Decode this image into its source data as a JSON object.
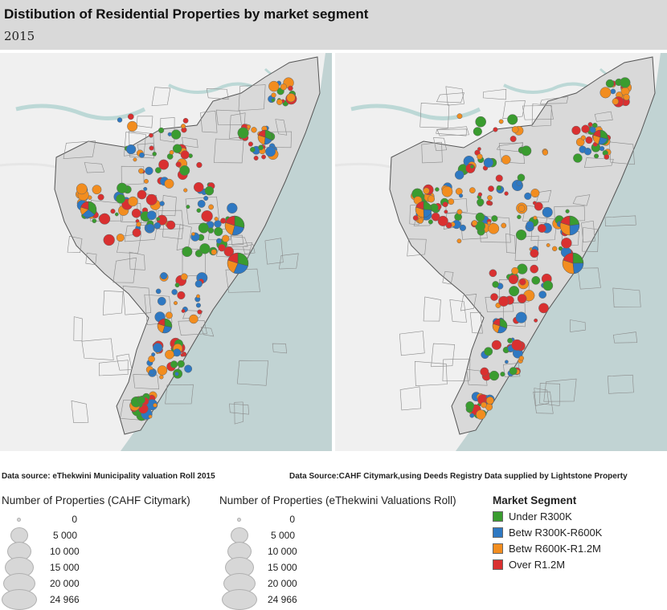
{
  "header": {
    "title": "Distibution of Residential Properties by market segment",
    "subtitle": "2015"
  },
  "sources": {
    "left": "Data source: eThekwini Municipality valuation Roll  2015",
    "right": "Data  Source:CAHF Citymark,using Deeds Registry Data supplied by Lightstone Property"
  },
  "legend_sizes_left": {
    "title": "Number of Properties (CAHF Citymark)",
    "items": [
      "0",
      "5 000",
      "10 000",
      "15 000",
      "20 000",
      "24 966"
    ]
  },
  "legend_sizes_right": {
    "title": "Number of Properties (eThekwini Valuations Roll)",
    "items": [
      "0",
      "5 000",
      "10 000",
      "15 000",
      "20 000",
      "24 966"
    ]
  },
  "legend_segments": {
    "title": "Market Segment",
    "items": [
      {
        "label": "Under R300K",
        "color": "#3a9c2f"
      },
      {
        "label": "Betw R300K-R600K",
        "color": "#2e78c2"
      },
      {
        "label": "Betw R600K-R1.2M",
        "color": "#f28d1f"
      },
      {
        "label": "Over R1.2M",
        "color": "#d93030"
      }
    ]
  },
  "map_style": {
    "land": "#f0f0f0",
    "ocean": "#c1d3d3",
    "region": "#d9d9d9",
    "border": "#555555",
    "river": "#bcd8d6"
  }
}
